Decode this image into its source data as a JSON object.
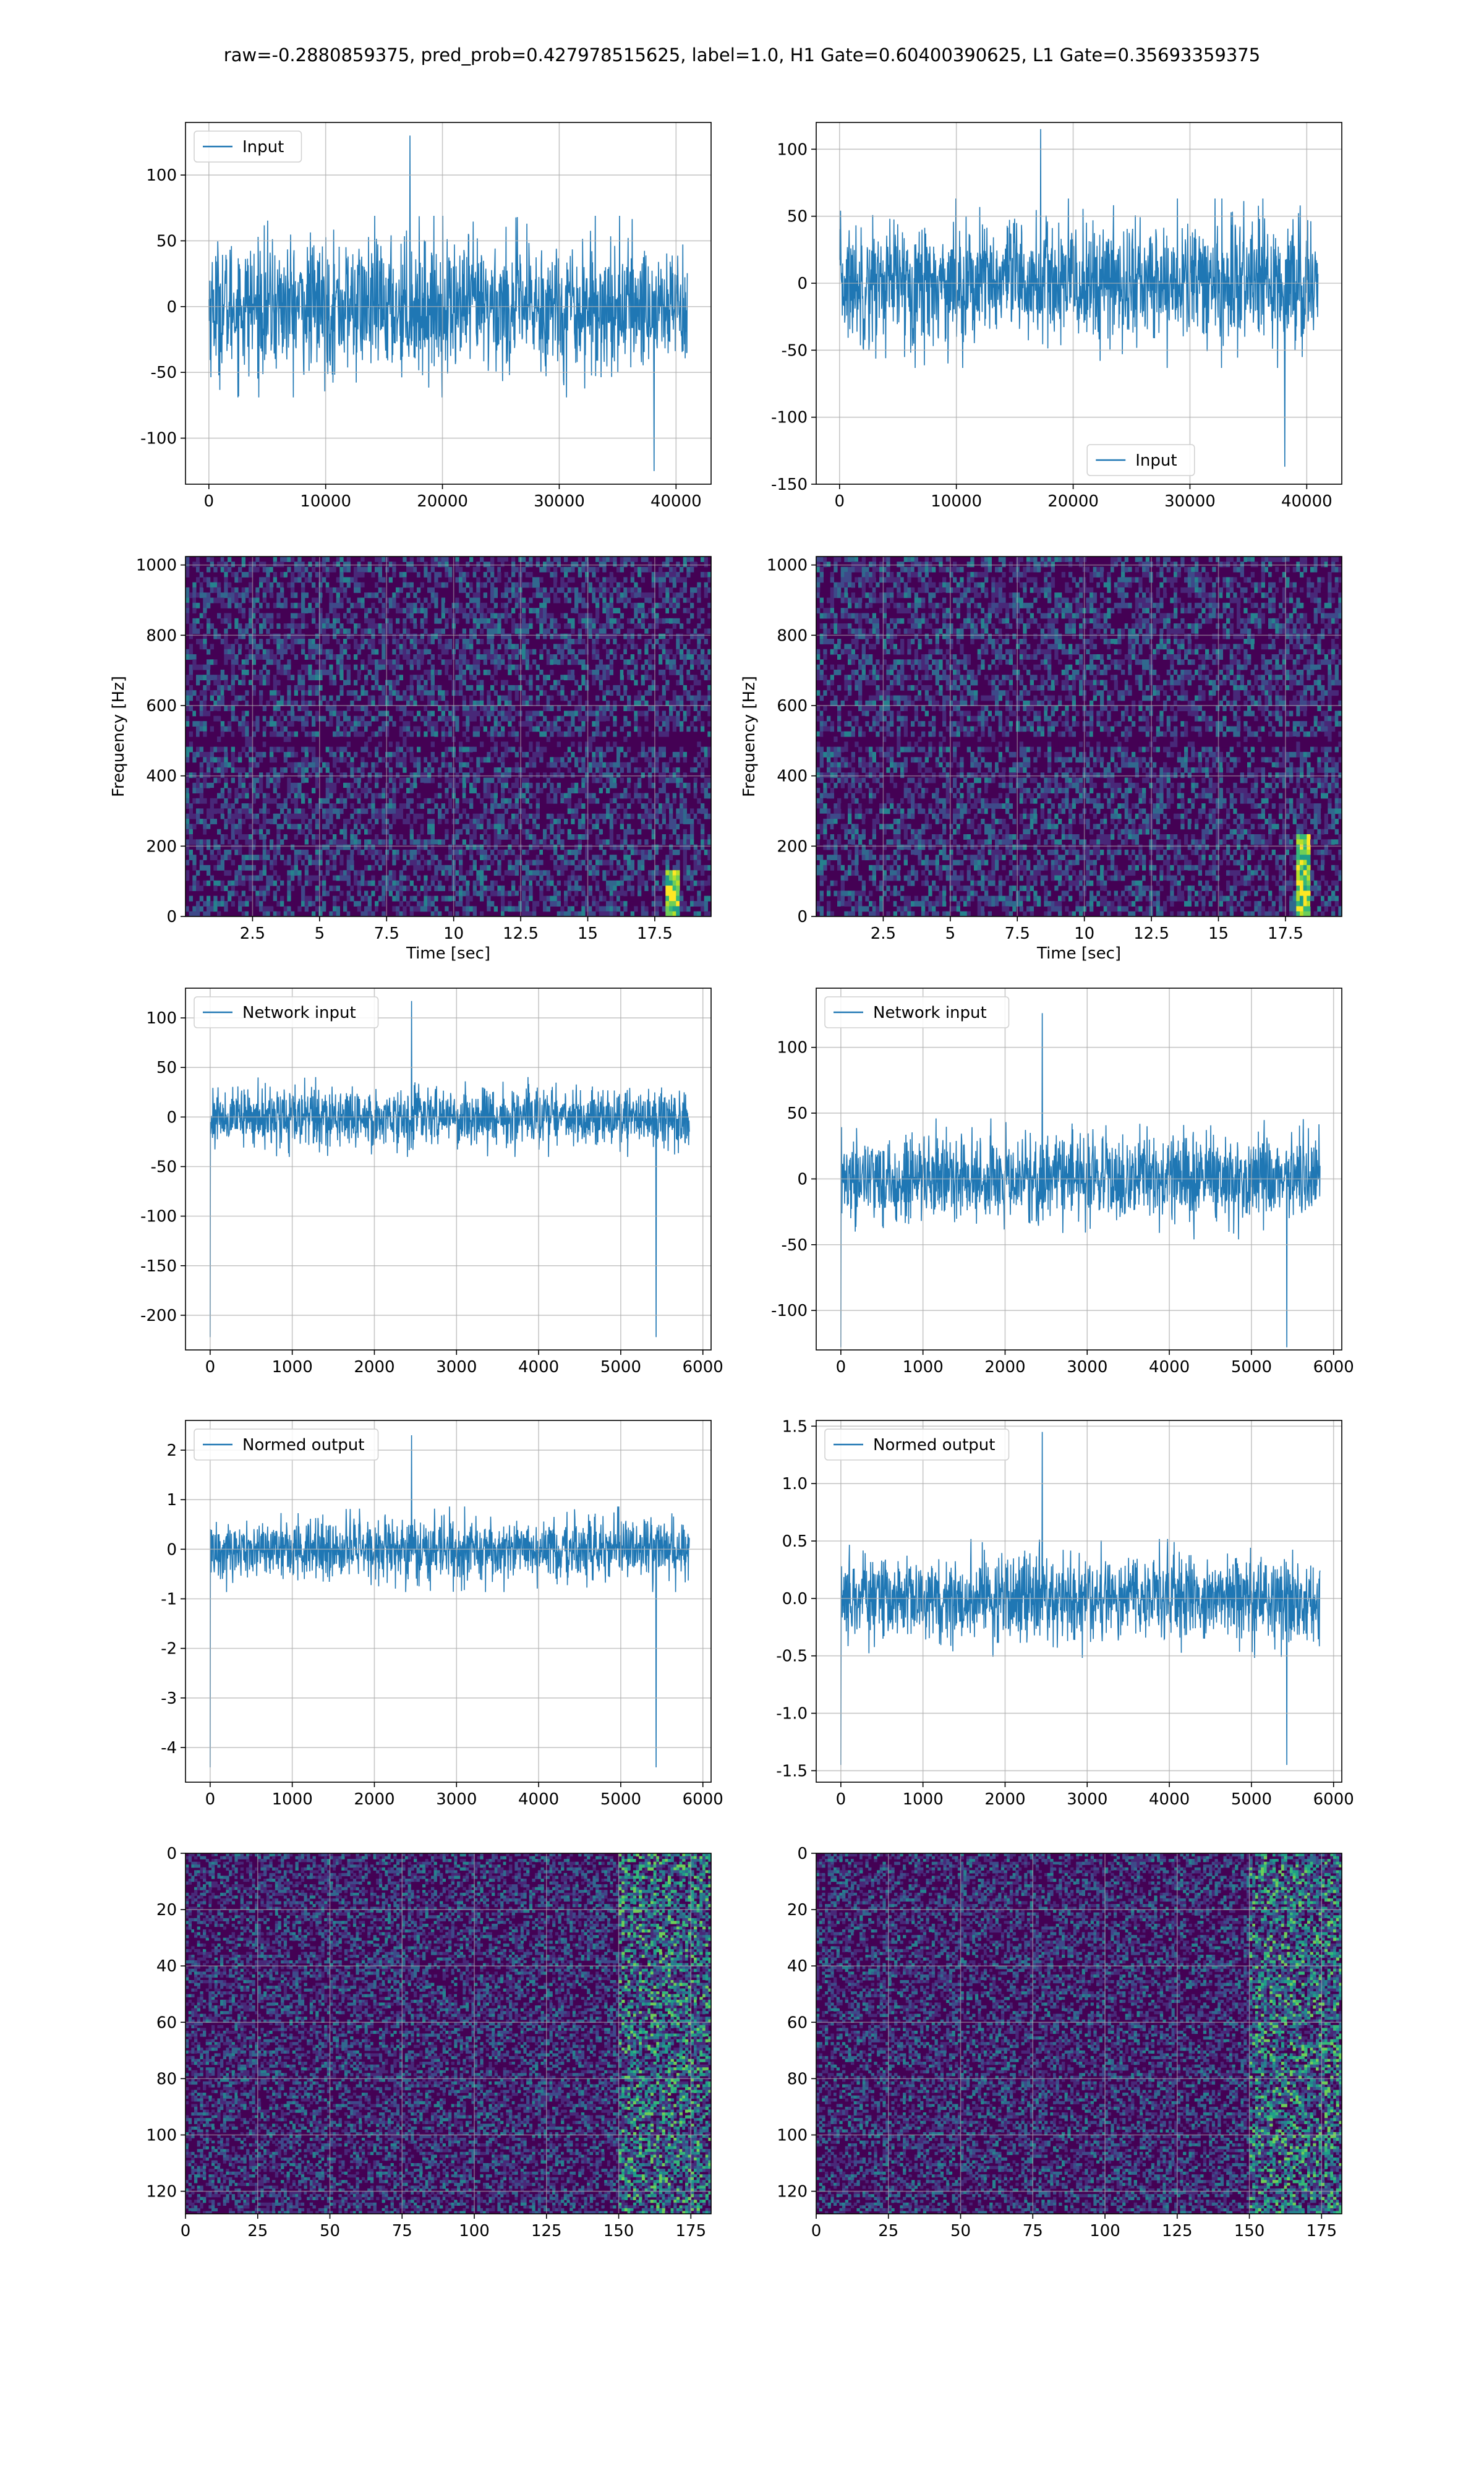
{
  "suptitle": "raw=-0.2880859375, pred_prob=0.427978515625, label=1.0, H1 Gate=0.60400390625, L1 Gate=0.35693359375",
  "colors": {
    "line": "#1f77b4",
    "grid": "#b0b0b0",
    "viridis": [
      "#440154",
      "#482878",
      "#3e4989",
      "#31688e",
      "#26828e",
      "#1f9e89",
      "#35b779",
      "#6ece58",
      "#b5de2b",
      "#fde725"
    ]
  },
  "chart_data": [
    {
      "id": "h1-input",
      "type": "line",
      "column": "left",
      "row": 1,
      "series": [
        {
          "name": "Input",
          "amplitude": 60,
          "peak_max": 130,
          "peak_min": -125,
          "n_points": 40960
        }
      ],
      "xlim": [
        -2000,
        43000
      ],
      "ylim": [
        -135,
        140
      ],
      "xticks": [
        0,
        10000,
        20000,
        30000,
        40000
      ],
      "yticks": [
        -100,
        -50,
        0,
        50,
        100
      ],
      "legend": "top-left",
      "grid": true
    },
    {
      "id": "l1-input",
      "type": "line",
      "column": "right",
      "row": 1,
      "series": [
        {
          "name": "Input",
          "amplitude": 55,
          "peak_max": 115,
          "peak_min": -137,
          "n_points": 40960
        }
      ],
      "xlim": [
        -2000,
        43000
      ],
      "ylim": [
        -150,
        120
      ],
      "xticks": [
        0,
        10000,
        20000,
        30000,
        40000
      ],
      "yticks": [
        -150,
        -100,
        -50,
        0,
        50,
        100
      ],
      "legend": "bottom-center",
      "grid": true
    },
    {
      "id": "h1-spectrogram",
      "type": "heatmap",
      "column": "left",
      "row": 2,
      "xlabel": "Time [sec]",
      "ylabel": "Frequency [Hz]",
      "xlim": [
        0,
        19.6
      ],
      "ylim": [
        0,
        1024
      ],
      "xticks": [
        2.5,
        5.0,
        7.5,
        10.0,
        12.5,
        15.0,
        17.5
      ],
      "yticks": [
        0,
        200,
        400,
        600,
        800,
        1000
      ],
      "hotspot": {
        "time": 18.2,
        "freq_max": 130
      },
      "grid": true
    },
    {
      "id": "l1-spectrogram",
      "type": "heatmap",
      "column": "right",
      "row": 2,
      "xlabel": "Time [sec]",
      "ylabel": "Frequency [Hz]",
      "xlim": [
        0,
        19.6
      ],
      "ylim": [
        0,
        1024
      ],
      "xticks": [
        2.5,
        5.0,
        7.5,
        10.0,
        12.5,
        15.0,
        17.5
      ],
      "yticks": [
        0,
        200,
        400,
        600,
        800,
        1000
      ],
      "hotspot": {
        "time": 18.2,
        "freq_max": 240
      },
      "grid": true
    },
    {
      "id": "h1-network-input",
      "type": "line",
      "column": "left",
      "row": 3,
      "series": [
        {
          "name": "Network input",
          "amplitude": 35,
          "peak_max": 117,
          "peak_min": -222,
          "n_points": 5835
        }
      ],
      "xlim": [
        -300,
        6100
      ],
      "ylim": [
        -235,
        130
      ],
      "xticks": [
        0,
        1000,
        2000,
        3000,
        4000,
        5000,
        6000
      ],
      "yticks": [
        -200,
        -150,
        -100,
        -50,
        0,
        50,
        100
      ],
      "legend": "top-left",
      "grid": true
    },
    {
      "id": "l1-network-input",
      "type": "line",
      "column": "right",
      "row": 3,
      "series": [
        {
          "name": "Network input",
          "amplitude": 40,
          "peak_max": 126,
          "peak_min": -128,
          "n_points": 5835
        }
      ],
      "xlim": [
        -300,
        6100
      ],
      "ylim": [
        -130,
        145
      ],
      "xticks": [
        0,
        1000,
        2000,
        3000,
        4000,
        5000,
        6000
      ],
      "yticks": [
        -100,
        -50,
        0,
        50,
        100
      ],
      "legend": "top-left",
      "grid": true
    },
    {
      "id": "h1-normed-output",
      "type": "line",
      "column": "left",
      "row": 4,
      "series": [
        {
          "name": "Normed output",
          "amplitude": 0.75,
          "peak_max": 2.3,
          "peak_min": -4.4,
          "n_points": 5835
        }
      ],
      "xlim": [
        -300,
        6100
      ],
      "ylim": [
        -4.7,
        2.6
      ],
      "xticks": [
        0,
        1000,
        2000,
        3000,
        4000,
        5000,
        6000
      ],
      "yticks": [
        -4,
        -3,
        -2,
        -1,
        0,
        1,
        2
      ],
      "legend": "top-left",
      "grid": true
    },
    {
      "id": "l1-normed-output",
      "type": "line",
      "column": "right",
      "row": 4,
      "series": [
        {
          "name": "Normed output",
          "amplitude": 0.45,
          "peak_max": 1.45,
          "peak_min": -1.45,
          "n_points": 5835
        }
      ],
      "xlim": [
        -300,
        6100
      ],
      "ylim": [
        -1.6,
        1.55
      ],
      "xticks": [
        0,
        1000,
        2000,
        3000,
        4000,
        5000,
        6000
      ],
      "yticks": [
        -1.5,
        -1.0,
        -0.5,
        0.0,
        0.5,
        1.0,
        1.5
      ],
      "legend": "top-left",
      "grid": true
    },
    {
      "id": "h1-feature-map",
      "type": "heatmap",
      "column": "left",
      "row": 5,
      "xlim": [
        0,
        182
      ],
      "ylim": [
        128,
        0
      ],
      "cells": [
        182,
        128
      ],
      "xticks": [
        0,
        25,
        50,
        75,
        100,
        125,
        150,
        175
      ],
      "yticks": [
        0,
        20,
        40,
        60,
        80,
        100,
        120
      ],
      "bright_region": [
        150,
        182
      ],
      "grid": true
    },
    {
      "id": "l1-feature-map",
      "type": "heatmap",
      "column": "right",
      "row": 5,
      "xlim": [
        0,
        182
      ],
      "ylim": [
        128,
        0
      ],
      "cells": [
        182,
        128
      ],
      "xticks": [
        0,
        25,
        50,
        75,
        100,
        125,
        150,
        175
      ],
      "yticks": [
        0,
        20,
        40,
        60,
        80,
        100,
        120
      ],
      "bright_region": [
        150,
        182
      ],
      "grid": true
    }
  ]
}
